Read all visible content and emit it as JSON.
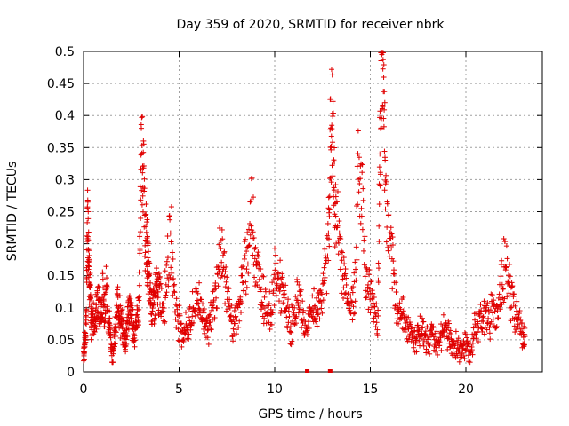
{
  "chart_data": {
    "type": "scatter",
    "title": "Day 359 of 2020, SRMTID for receiver nbrk",
    "xlabel": "GPS time / hours",
    "ylabel": "SRMTID / TECUs",
    "xlim": [
      0,
      24
    ],
    "ylim": [
      0,
      0.5
    ],
    "x_ticks": [
      0,
      5,
      10,
      15,
      20
    ],
    "y_ticks": [
      0,
      0.05,
      0.1,
      0.15,
      0.2,
      0.25,
      0.3,
      0.35,
      0.4,
      0.45,
      0.5
    ],
    "x_tick_labels": [
      "0",
      "5",
      "10",
      "15",
      "20"
    ],
    "y_tick_labels": [
      "0",
      "0.05",
      "0.1",
      "0.15",
      "0.2",
      "0.25",
      "0.3",
      "0.35",
      "0.4",
      "0.45",
      "0.5"
    ],
    "grid": true,
    "marker": "+",
    "color": "#e00000",
    "series": [
      {
        "name": "SRMTID",
        "x": [
          0.0,
          0.05,
          0.1,
          0.15,
          0.2,
          0.25,
          0.3,
          0.35,
          0.4,
          0.5,
          0.6,
          0.7,
          0.8,
          0.9,
          1.0,
          1.1,
          1.2,
          1.3,
          1.4,
          1.5,
          1.6,
          1.7,
          1.8,
          1.9,
          2.0,
          2.1,
          2.2,
          2.3,
          2.4,
          2.5,
          2.6,
          2.7,
          2.8,
          2.9,
          3.0,
          3.1,
          3.2,
          3.3,
          3.35,
          3.4,
          3.5,
          3.6,
          3.7,
          3.8,
          3.9,
          4.0,
          4.2,
          4.4,
          4.6,
          4.8,
          5.0,
          5.2,
          5.4,
          5.6,
          5.8,
          6.0,
          6.2,
          6.4,
          6.6,
          6.8,
          7.0,
          7.2,
          7.4,
          7.6,
          7.8,
          8.0,
          8.2,
          8.4,
          8.6,
          8.8,
          9.0,
          9.2,
          9.4,
          9.6,
          9.8,
          10.0,
          10.2,
          10.4,
          10.6,
          10.8,
          11.0,
          11.2,
          11.4,
          11.6,
          11.8,
          12.0,
          12.2,
          12.4,
          12.6,
          12.8,
          12.9,
          13.0,
          13.1,
          13.2,
          13.4,
          13.6,
          13.8,
          14.0,
          14.2,
          14.4,
          14.6,
          14.8,
          15.0,
          15.2,
          15.4,
          15.5,
          15.6,
          15.7,
          15.8,
          16.0,
          16.2,
          16.4,
          16.6,
          16.8,
          17.0,
          17.2,
          17.4,
          17.6,
          17.8,
          18.0,
          18.2,
          18.4,
          18.6,
          18.8,
          19.0,
          19.2,
          19.4,
          19.6,
          19.8,
          20.0,
          20.2,
          20.4,
          20.6,
          20.8,
          21.0,
          21.2,
          21.4,
          21.6,
          21.8,
          22.0,
          22.2,
          22.4,
          22.6,
          22.8,
          23.0
        ],
        "y": [
          0.03,
          0.04,
          0.06,
          0.1,
          0.25,
          0.22,
          0.16,
          0.12,
          0.07,
          0.09,
          0.08,
          0.1,
          0.11,
          0.09,
          0.12,
          0.1,
          0.14,
          0.08,
          0.06,
          0.02,
          0.05,
          0.07,
          0.12,
          0.09,
          0.07,
          0.06,
          0.05,
          0.08,
          0.1,
          0.09,
          0.07,
          0.06,
          0.09,
          0.1,
          0.31,
          0.36,
          0.22,
          0.2,
          0.18,
          0.15,
          0.12,
          0.1,
          0.11,
          0.13,
          0.12,
          0.12,
          0.1,
          0.18,
          0.2,
          0.1,
          0.08,
          0.06,
          0.07,
          0.08,
          0.1,
          0.12,
          0.09,
          0.08,
          0.07,
          0.1,
          0.14,
          0.2,
          0.15,
          0.1,
          0.07,
          0.08,
          0.12,
          0.15,
          0.19,
          0.26,
          0.18,
          0.14,
          0.12,
          0.1,
          0.09,
          0.15,
          0.14,
          0.12,
          0.1,
          0.07,
          0.08,
          0.12,
          0.1,
          0.06,
          0.08,
          0.1,
          0.09,
          0.12,
          0.14,
          0.2,
          0.35,
          0.39,
          0.3,
          0.24,
          0.2,
          0.15,
          0.12,
          0.1,
          0.14,
          0.33,
          0.26,
          0.14,
          0.12,
          0.1,
          0.08,
          0.35,
          0.5,
          0.46,
          0.27,
          0.2,
          0.15,
          0.1,
          0.09,
          0.08,
          0.07,
          0.06,
          0.05,
          0.07,
          0.06,
          0.05,
          0.06,
          0.04,
          0.05,
          0.07,
          0.06,
          0.05,
          0.04,
          0.04,
          0.03,
          0.05,
          0.02,
          0.06,
          0.07,
          0.08,
          0.09,
          0.08,
          0.1,
          0.09,
          0.12,
          0.17,
          0.14,
          0.11,
          0.09,
          0.08,
          0.05
        ]
      }
    ],
    "zero_markers_x": [
      11.7,
      12.9
    ]
  }
}
